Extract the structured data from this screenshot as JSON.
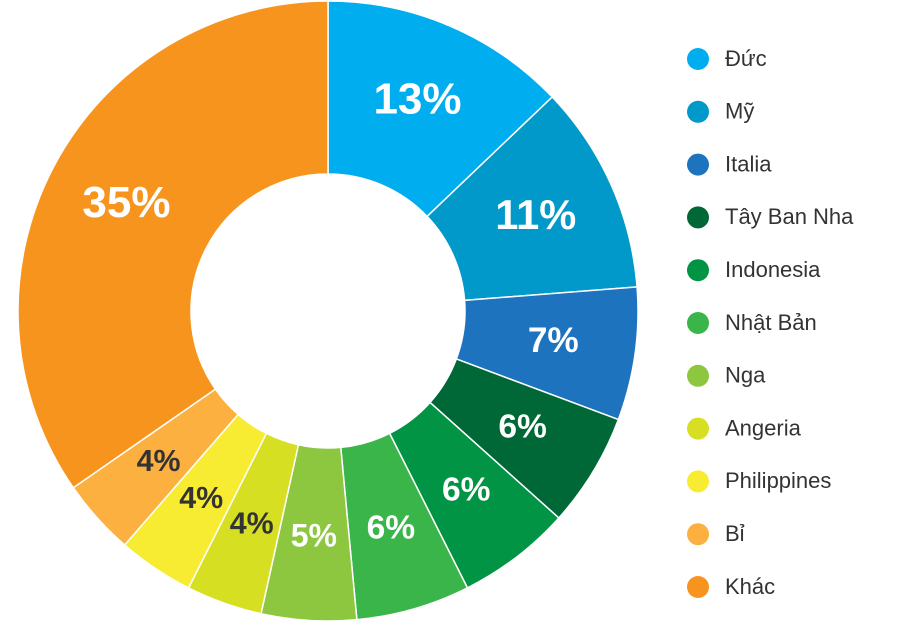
{
  "chart_data": {
    "type": "donut",
    "categories": [
      "Đức",
      "Mỹ",
      "Italia",
      "Tây Ban Nha",
      "Indonesia",
      "Nhật Bản",
      "Nga",
      "Angeria",
      "Philippines",
      "Bỉ",
      "Khác"
    ],
    "values": [
      13,
      11,
      7,
      6,
      6,
      6,
      5,
      4,
      4,
      4,
      35
    ],
    "value_labels": [
      "13%",
      "11%",
      "7%",
      "6%",
      "6%",
      "6%",
      "5%",
      "4%",
      "4%",
      "4%",
      "35%"
    ],
    "colors": [
      "#00aeef",
      "#0099c9",
      "#1e73be",
      "#006837",
      "#009444",
      "#39b54a",
      "#8dc63f",
      "#d7df23",
      "#f7ec31",
      "#fbb040",
      "#f7941d"
    ],
    "value_label_colors": [
      "#ffffff",
      "#ffffff",
      "#ffffff",
      "#ffffff",
      "#ffffff",
      "#ffffff",
      "#ffffff",
      "#333333",
      "#333333",
      "#333333",
      "#ffffff"
    ],
    "legend": "right"
  }
}
